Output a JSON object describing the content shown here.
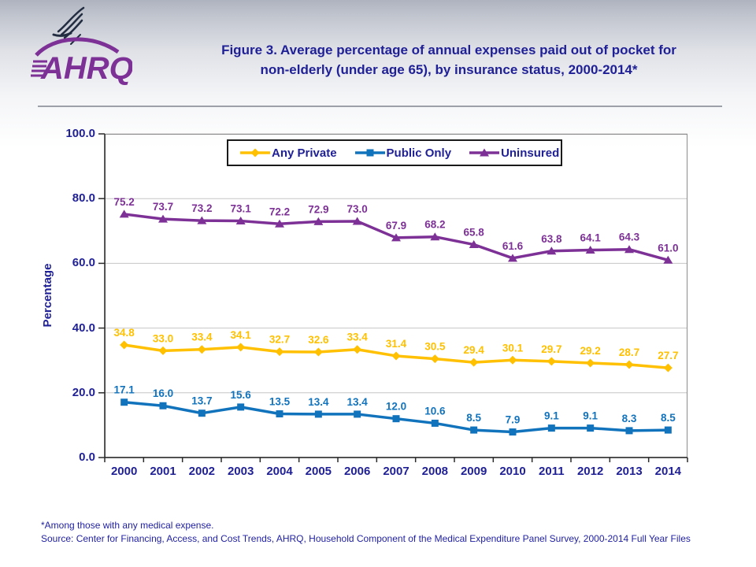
{
  "header": {
    "title_line1": "Figure 3. Average percentage of annual expenses paid out of pocket for",
    "title_line2": "non-elderly (under age 65), by insurance status, 2000-2014*",
    "logo_text": "AHRQ"
  },
  "footer": {
    "footnote": "*Among those with any medical expense.",
    "source": "Source: Center for Financing, Access, and Cost Trends, AHRQ, Household Component of the Medical Expenditure Panel Survey,  2000-2014 Full Year Files"
  },
  "colors": {
    "title_navy": "#1f1f96",
    "any_private": "#FFC000",
    "public_only": "#1273BD",
    "uninsured": "#7D3096",
    "grid": "#c6c6c6",
    "plot_border": "#8c8c8c",
    "axis": "#2b2b2b",
    "logo_purple": "#7D3096",
    "eagle_dark": "#232d42"
  },
  "chart_data": {
    "type": "line",
    "title": "Figure 3. Average percentage of annual expenses paid out of pocket for non-elderly (under age 65), by insurance status, 2000-2014*",
    "xlabel": "",
    "ylabel": "Percentage",
    "ylim": [
      0,
      100
    ],
    "ytick_step": 20,
    "grid": true,
    "legend_position": "top-center",
    "data_labels": true,
    "label_decimals": 1,
    "categories": [
      "2000",
      "2001",
      "2002",
      "2003",
      "2004",
      "2005",
      "2006",
      "2007",
      "2008",
      "2009",
      "2010",
      "2011",
      "2012",
      "2013",
      "2014"
    ],
    "series": [
      {
        "name": "Any Private",
        "marker": "diamond",
        "color": "#FFC000",
        "values": [
          34.8,
          33.0,
          33.4,
          34.1,
          32.7,
          32.6,
          33.4,
          31.4,
          30.5,
          29.4,
          30.1,
          29.7,
          29.2,
          28.7,
          27.7
        ]
      },
      {
        "name": "Public Only",
        "marker": "square",
        "color": "#1273BD",
        "values": [
          17.1,
          16.0,
          13.7,
          15.6,
          13.5,
          13.4,
          13.4,
          12.0,
          10.6,
          8.5,
          7.9,
          9.1,
          9.1,
          8.3,
          8.5
        ]
      },
      {
        "name": "Uninsured",
        "marker": "triangle",
        "color": "#7D3096",
        "values": [
          75.2,
          73.7,
          73.2,
          73.1,
          72.2,
          72.9,
          73.0,
          67.9,
          68.2,
          65.8,
          61.6,
          63.8,
          64.1,
          64.3,
          61.0
        ]
      }
    ]
  }
}
